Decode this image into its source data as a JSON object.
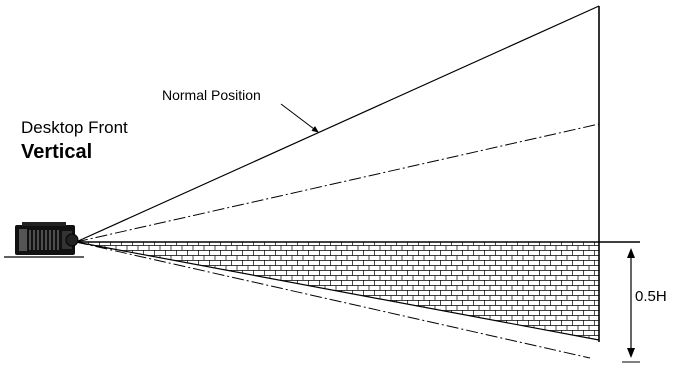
{
  "labels": {
    "normal_position": "Normal Position",
    "mode": "Desktop Front",
    "orientation": "Vertical",
    "offset": "0.5H"
  },
  "colors": {
    "line": "#000000",
    "background": "#ffffff"
  },
  "icons": {
    "projector": "projector-icon",
    "leader_arrow": "arrow-icon"
  }
}
